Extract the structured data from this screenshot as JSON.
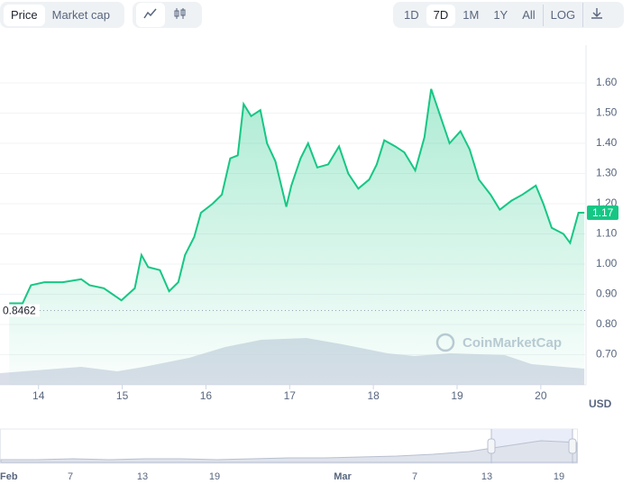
{
  "toolbar": {
    "metric_tabs": [
      "Price",
      "Market cap"
    ],
    "ranges": [
      "1D",
      "7D",
      "1M",
      "1Y",
      "All",
      "LOG"
    ]
  },
  "chart_data": {
    "type": "line",
    "series": [
      {
        "color": "#16c784",
        "x": [
          13.65,
          13.81,
          13.91,
          14.07,
          14.29,
          14.51,
          14.61,
          14.78,
          14.99,
          15.15,
          15.23,
          15.31,
          15.45,
          15.56,
          15.67,
          15.75,
          15.86,
          15.94,
          16.08,
          16.19,
          16.29,
          16.38,
          16.45,
          16.54,
          16.65,
          16.73,
          16.83,
          16.96,
          17.02,
          17.13,
          17.22,
          17.33,
          17.46,
          17.59,
          17.7,
          17.82,
          17.95,
          18.04,
          18.13,
          18.26,
          18.37,
          18.5,
          18.61,
          18.69,
          18.8,
          18.91,
          19.04,
          19.15,
          19.26,
          19.4,
          19.51,
          19.65,
          19.78,
          19.94,
          20.03,
          20.13,
          20.27,
          20.35,
          20.45,
          20.52
        ],
        "values": [
          0.87,
          0.87,
          0.93,
          0.94,
          0.94,
          0.95,
          0.93,
          0.92,
          0.88,
          0.92,
          1.03,
          0.99,
          0.98,
          0.91,
          0.94,
          1.03,
          1.09,
          1.17,
          1.2,
          1.23,
          1.35,
          1.36,
          1.53,
          1.49,
          1.51,
          1.4,
          1.34,
          1.19,
          1.26,
          1.35,
          1.4,
          1.32,
          1.33,
          1.39,
          1.3,
          1.25,
          1.28,
          1.33,
          1.41,
          1.39,
          1.37,
          1.31,
          1.42,
          1.58,
          1.49,
          1.4,
          1.44,
          1.38,
          1.28,
          1.23,
          1.18,
          1.21,
          1.23,
          1.26,
          1.2,
          1.12,
          1.1,
          1.07,
          1.17,
          1.17
        ]
      }
    ],
    "volume": {
      "color": "#cdd3e2",
      "x": [
        13.54,
        14.51,
        14.94,
        15.26,
        15.8,
        16.23,
        16.66,
        17.2,
        17.63,
        18.17,
        18.49,
        18.92,
        19.57,
        19.89,
        20.52
      ],
      "values": [
        13,
        20,
        15,
        20,
        30,
        42,
        50,
        52,
        45,
        35,
        32,
        35,
        33,
        23,
        18
      ],
      "ylim": [
        0,
        100
      ]
    },
    "xlim": [
      13.54,
      20.54
    ],
    "xticks": [
      14,
      15,
      16,
      17,
      18,
      19,
      20
    ],
    "ylim": [
      0.6,
      1.7
    ],
    "yticks": [
      {
        "value": 0.7,
        "label": "0.70"
      },
      {
        "value": 0.8,
        "label": "0.80"
      },
      {
        "value": 0.9,
        "label": "0.90"
      },
      {
        "value": 1.0,
        "label": "1.00"
      },
      {
        "value": 1.1,
        "label": "1.10"
      },
      {
        "value": 1.2,
        "label": "1.20"
      },
      {
        "value": 1.3,
        "label": "1.30"
      },
      {
        "value": 1.4,
        "label": "1.40"
      },
      {
        "value": 1.5,
        "label": "1.50"
      },
      {
        "value": 1.6,
        "label": "1.60"
      }
    ],
    "grid": true,
    "reference_price": 0.8462,
    "current_price": 1.17,
    "currency": "USD",
    "watermark": "CoinMarketCap",
    "navigator": {
      "labels": [
        "Feb",
        "7",
        "13",
        "19",
        "Mar",
        "7",
        "13",
        "19"
      ],
      "values": [
        3,
        3,
        4,
        3,
        4,
        4,
        3,
        4,
        5,
        5,
        6,
        7,
        9,
        12,
        18,
        24,
        22
      ]
    }
  }
}
